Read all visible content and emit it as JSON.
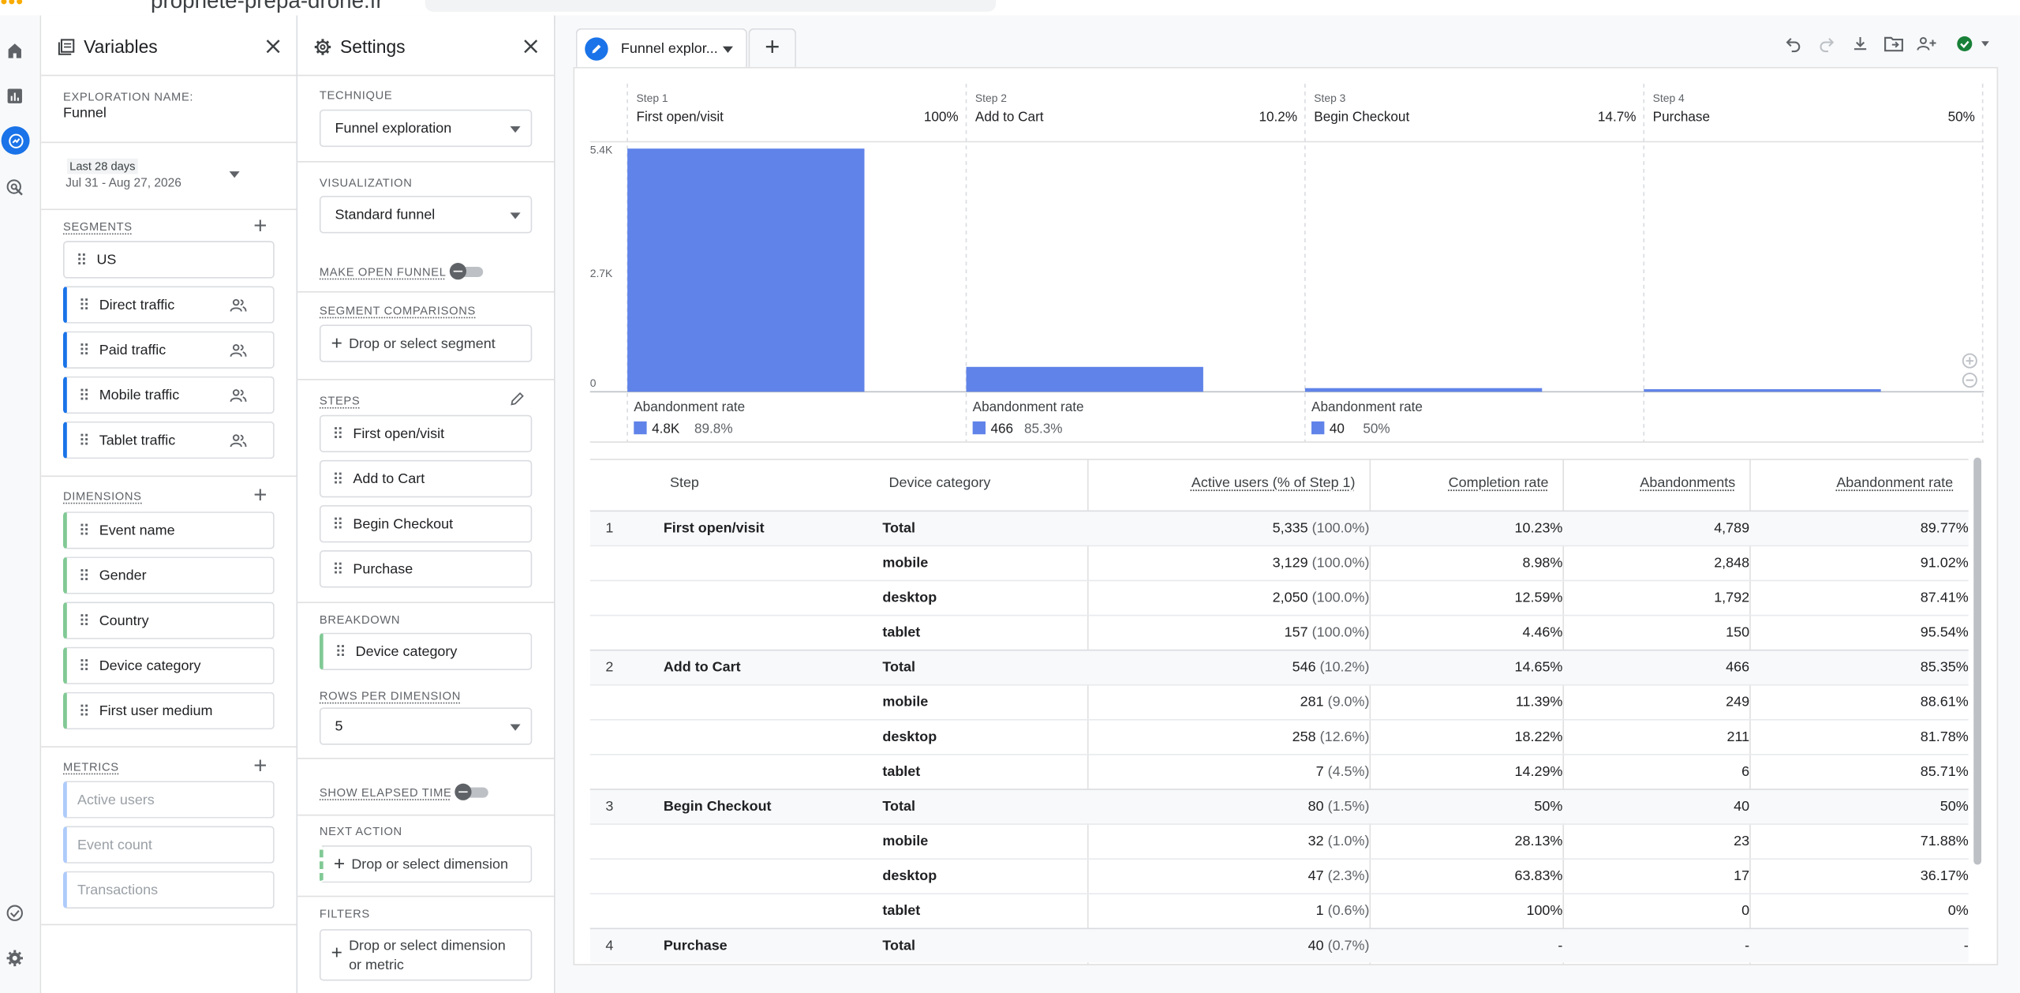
{
  "window": {
    "title": "prophete-prepa-drone.fr"
  },
  "variables": {
    "title": "Variables",
    "exploration_name_label": "EXPLORATION NAME:",
    "exploration_name": "Funnel",
    "date_range_label": "Last 28 days",
    "date_range": "Jul 31 - Aug 27, 2026",
    "segments_label": "SEGMENTS",
    "segments": [
      "US",
      "Direct traffic",
      "Paid traffic",
      "Mobile traffic",
      "Tablet traffic"
    ],
    "dimensions_label": "DIMENSIONS",
    "dimensions": [
      "Event name",
      "Gender",
      "Country",
      "Device category",
      "First user medium"
    ],
    "metrics_label": "METRICS",
    "metrics": [
      "Active users",
      "Event count",
      "Transactions"
    ]
  },
  "settings": {
    "title": "Settings",
    "technique_label": "TECHNIQUE",
    "technique": "Funnel exploration",
    "visualization_label": "VISUALIZATION",
    "visualization": "Standard funnel",
    "open_funnel_label": "MAKE OPEN FUNNEL",
    "open_funnel_on": false,
    "segment_comparisons_label": "SEGMENT COMPARISONS",
    "segment_drop": "Drop or select segment",
    "steps_label": "STEPS",
    "steps": [
      "First open/visit",
      "Add to Cart",
      "Begin Checkout",
      "Purchase"
    ],
    "breakdown_label": "BREAKDOWN",
    "breakdown": "Device category",
    "rows_per_dimension_label": "ROWS PER DIMENSION",
    "rows_per_dimension": "5",
    "elapsed_time_label": "SHOW ELAPSED TIME",
    "elapsed_time_on": false,
    "next_action_label": "NEXT ACTION",
    "next_action_drop": "Drop or select dimension",
    "filters_label": "FILTERS",
    "filters_drop_line1": "Drop or select dimension",
    "filters_drop_line2": "or metric"
  },
  "main": {
    "tab_label": "Funnel explor...",
    "colors": {
      "accent": "#1a73e8",
      "bar": "#6083e9",
      "check": "#188038"
    }
  },
  "chart_data": {
    "type": "bar",
    "categories": [
      "First open/visit",
      "Add to Cart",
      "Begin Checkout",
      "Purchase"
    ],
    "step_labels": [
      "Step 1",
      "Step 2",
      "Step 3",
      "Step 4"
    ],
    "step_percents": [
      "100%",
      "10.2%",
      "14.7%",
      "50%"
    ],
    "values": [
      5335,
      546,
      80,
      40
    ],
    "y_ticks": [
      "5.4K",
      "2.7K",
      "0"
    ],
    "ylim": [
      0,
      5400
    ],
    "abandonment_label": "Abandonment rate",
    "abandonments": [
      {
        "count": "4.8K",
        "rate": "89.8%"
      },
      {
        "count": "466",
        "rate": "85.3%"
      },
      {
        "count": "40",
        "rate": "50%"
      }
    ]
  },
  "table": {
    "headers": {
      "step": "Step",
      "device": "Device category",
      "active": "Active users (% of Step 1)",
      "completion": "Completion rate",
      "abandonments": "Abandonments",
      "abandonment_rate": "Abandonment rate"
    },
    "rows": [
      {
        "num": "1",
        "step": "First open/visit",
        "device": "Total",
        "active": "5,335",
        "active_pct": "(100.0%)",
        "completion": "10.23%",
        "abandonments": "4,789",
        "rate": "89.77%"
      },
      {
        "num": "",
        "step": "",
        "device": "mobile",
        "active": "3,129",
        "active_pct": "(100.0%)",
        "completion": "8.98%",
        "abandonments": "2,848",
        "rate": "91.02%"
      },
      {
        "num": "",
        "step": "",
        "device": "desktop",
        "active": "2,050",
        "active_pct": "(100.0%)",
        "completion": "12.59%",
        "abandonments": "1,792",
        "rate": "87.41%"
      },
      {
        "num": "",
        "step": "",
        "device": "tablet",
        "active": "157",
        "active_pct": "(100.0%)",
        "completion": "4.46%",
        "abandonments": "150",
        "rate": "95.54%"
      },
      {
        "num": "2",
        "step": "Add to Cart",
        "device": "Total",
        "active": "546",
        "active_pct": "(10.2%)",
        "completion": "14.65%",
        "abandonments": "466",
        "rate": "85.35%"
      },
      {
        "num": "",
        "step": "",
        "device": "mobile",
        "active": "281",
        "active_pct": "(9.0%)",
        "completion": "11.39%",
        "abandonments": "249",
        "rate": "88.61%"
      },
      {
        "num": "",
        "step": "",
        "device": "desktop",
        "active": "258",
        "active_pct": "(12.6%)",
        "completion": "18.22%",
        "abandonments": "211",
        "rate": "81.78%"
      },
      {
        "num": "",
        "step": "",
        "device": "tablet",
        "active": "7",
        "active_pct": "(4.5%)",
        "completion": "14.29%",
        "abandonments": "6",
        "rate": "85.71%"
      },
      {
        "num": "3",
        "step": "Begin Checkout",
        "device": "Total",
        "active": "80",
        "active_pct": "(1.5%)",
        "completion": "50%",
        "abandonments": "40",
        "rate": "50%"
      },
      {
        "num": "",
        "step": "",
        "device": "mobile",
        "active": "32",
        "active_pct": "(1.0%)",
        "completion": "28.13%",
        "abandonments": "23",
        "rate": "71.88%"
      },
      {
        "num": "",
        "step": "",
        "device": "desktop",
        "active": "47",
        "active_pct": "(2.3%)",
        "completion": "63.83%",
        "abandonments": "17",
        "rate": "36.17%"
      },
      {
        "num": "",
        "step": "",
        "device": "tablet",
        "active": "1",
        "active_pct": "(0.6%)",
        "completion": "100%",
        "abandonments": "0",
        "rate": "0%"
      },
      {
        "num": "4",
        "step": "Purchase",
        "device": "Total",
        "active": "40",
        "active_pct": "(0.7%)",
        "completion": "-",
        "abandonments": "-",
        "rate": "-"
      }
    ]
  }
}
